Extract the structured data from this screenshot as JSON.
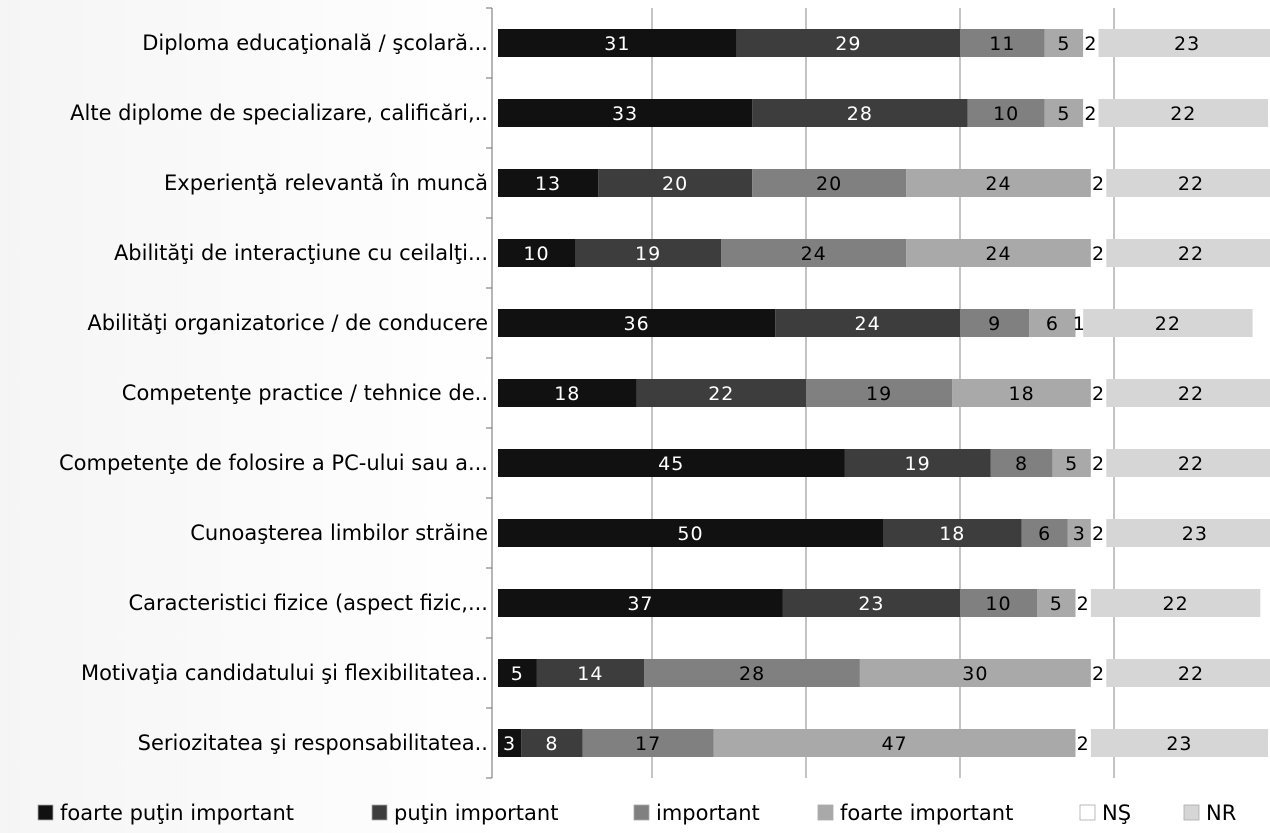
{
  "chart_data": {
    "type": "bar",
    "orientation": "horizontal",
    "stacked": true,
    "grid": true,
    "legend_position": "bottom",
    "categories": [
      "Diploma educaţională / şcolară...",
      "Alte diplome de specializare, calificări,..",
      "Experienţă relevantă în muncă",
      "Abilităţi de interacţiune cu ceilalţi...",
      "Abilităţi organizatorice / de conducere",
      "Competenţe practice / tehnice de..",
      "Competenţe de folosire a PC-ului sau a...",
      "Cunoaşterea limbilor străine",
      "Caracteristici fizice (aspect fizic,...",
      "Motivaţia candidatului şi flexibilitatea..",
      "Seriozitatea şi responsabilitatea.."
    ],
    "series": [
      {
        "name": "foarte puţin important",
        "color": "#111111",
        "text_color": "#ffffff",
        "values": [
          31,
          33,
          13,
          10,
          36,
          18,
          45,
          50,
          37,
          5,
          3
        ]
      },
      {
        "name": "puţin important",
        "color": "#3d3d3d",
        "text_color": "#ffffff",
        "values": [
          29,
          28,
          20,
          19,
          24,
          22,
          19,
          18,
          23,
          14,
          8
        ]
      },
      {
        "name": "important",
        "color": "#808080",
        "text_color": "#000000",
        "values": [
          11,
          10,
          20,
          24,
          9,
          19,
          8,
          6,
          10,
          28,
          17
        ]
      },
      {
        "name": "foarte important",
        "color": "#a9a9a9",
        "text_color": "#000000",
        "values": [
          5,
          5,
          24,
          24,
          6,
          18,
          5,
          3,
          5,
          30,
          47
        ]
      },
      {
        "name": "NŞ",
        "color": "#ffffff",
        "text_color": "#000000",
        "values": [
          2,
          2,
          2,
          2,
          1,
          2,
          2,
          2,
          2,
          2,
          2
        ]
      },
      {
        "name": "NR",
        "color": "#d6d6d6",
        "text_color": "#000000",
        "values": [
          23,
          22,
          22,
          22,
          22,
          22,
          22,
          23,
          22,
          22,
          23
        ]
      }
    ],
    "xlim": [
      0,
      100
    ]
  }
}
